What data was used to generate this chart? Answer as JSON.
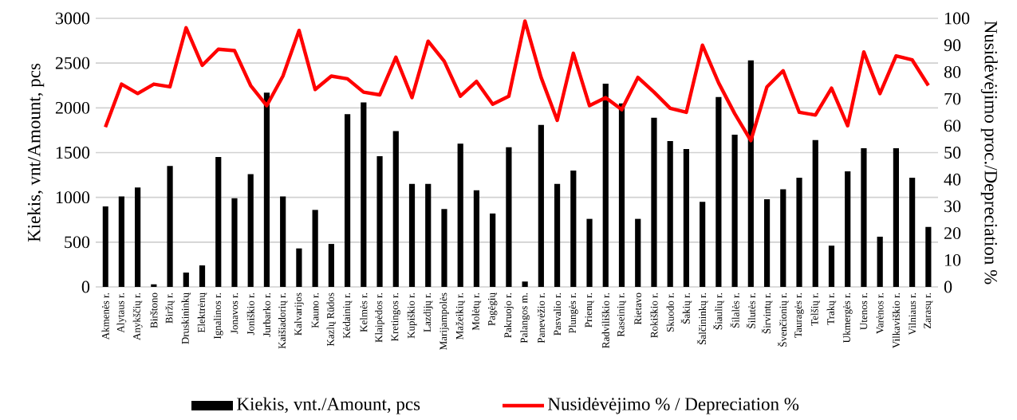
{
  "chart_data": {
    "type": "bar",
    "ylabel": "Kiekis, vnt/Amount, pcs",
    "y2label": "Nusidėvėjimo proc./Depreciation %",
    "categories": [
      "Akmenės r.",
      "Alytaus r.",
      "Anykščių r.",
      "Birštono",
      "Biržų r.",
      "Druskininkų",
      "Elektrėnų",
      "Ignalinos r.",
      "Jonavos r.",
      "Joniškio r.",
      "Jurbarko r.",
      "Kaišiadorių r.",
      "Kalvarijos",
      "Kauno r.",
      "Kazlų Rūdos",
      "Kėdainių r.",
      "Kelmės r.",
      "Klaipėdos r.",
      "Kretingos r.",
      "Kupiškio r.",
      "Lazdijų r.",
      "Marijampolės",
      "Mažeikių r.",
      "Molėtų r.",
      "Pagėgių",
      "Pakruojo r.",
      "Palangos m.",
      "Panevėžio r.",
      "Pasvalio r.",
      "Plungės r.",
      "Prienų r.",
      "Radviliškio r.",
      "Raseinių r.",
      "Rietavo",
      "Rokiškio r.",
      "Skuodo r.",
      "Šakių r.",
      "Šalčininkų r.",
      "Šiaulių r.",
      "Šilalės r.",
      "Šilutės r.",
      "Širvintų r.",
      "Švenčionių r.",
      "Tauragės r.",
      "Telšių r.",
      "Trakų r.",
      "Ukmergės r.",
      "Utenos r.",
      "Varėnos r.",
      "Vilkaviškio r.",
      "Vilniaus r.",
      "Zarasų r."
    ],
    "series": [
      {
        "name": "Kiekis, vnt./Amount, pcs",
        "color": "#000000",
        "values": [
          900,
          1010,
          1110,
          30,
          1350,
          160,
          240,
          1450,
          990,
          1260,
          2170,
          1010,
          430,
          860,
          480,
          1930,
          2060,
          1460,
          1740,
          1150,
          1150,
          870,
          1600,
          1080,
          820,
          1560,
          60,
          1810,
          1150,
          1300,
          760,
          2270,
          2050,
          760,
          1890,
          1630,
          1540,
          950,
          2120,
          1700,
          2530,
          980,
          1090,
          1220,
          1640,
          460,
          1290,
          1550,
          560,
          1550,
          1220,
          670
        ]
      },
      {
        "name": "Nusidėvėjimo % / Depreciation %",
        "type": "line",
        "axis": "y2",
        "color": "#ff0000",
        "values": [
          59.5,
          75.5,
          72,
          75.5,
          74.5,
          96.5,
          82.5,
          88.5,
          88,
          75,
          67.5,
          78.5,
          95.5,
          73.5,
          78.5,
          77.5,
          72.5,
          71.5,
          85.5,
          70.5,
          91.5,
          84,
          71,
          76.5,
          68,
          71,
          99,
          78,
          62,
          87,
          67.5,
          70.5,
          66,
          78,
          72.5,
          66.5,
          65,
          90,
          76,
          64.5,
          54.5,
          74.5,
          80.5,
          65,
          64,
          74,
          60,
          87.5,
          72,
          86,
          84.5,
          75
        ]
      }
    ],
    "ylim": [
      0,
      3000
    ],
    "yticks": [
      0,
      500,
      1000,
      1500,
      2000,
      2500,
      3000
    ],
    "y2lim": [
      0,
      100
    ],
    "y2ticks": [
      0,
      10,
      20,
      30,
      40,
      50,
      60,
      70,
      80,
      90,
      100
    ],
    "grid": "y",
    "legend": "bottom"
  }
}
